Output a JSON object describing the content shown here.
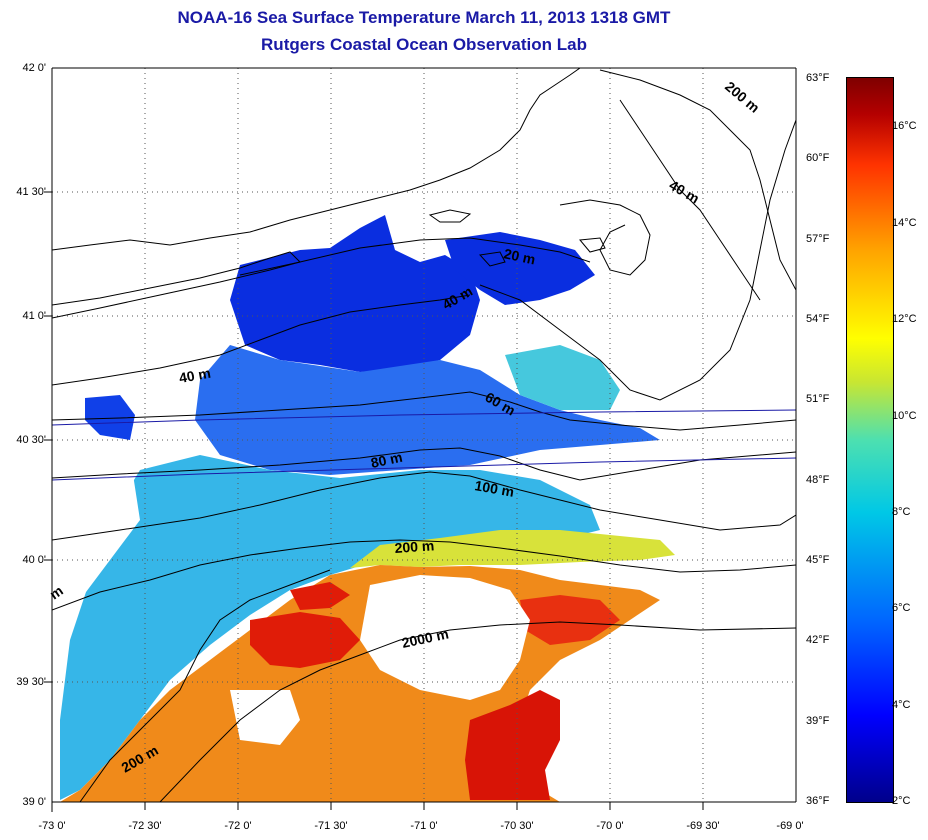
{
  "title_line1": "NOAA-16 Sea Surface Temperature March 11, 2013 1318 GMT",
  "title_line2": "Rutgers Coastal Ocean Observation Lab",
  "latitude_labels": [
    "42 0'",
    "41 30'",
    "41 0'",
    "40 30'",
    "40 0'",
    "39 30'",
    "39 0'"
  ],
  "longitude_labels": [
    "-73 0'",
    "-72 30'",
    "-72 0'",
    "-71 30'",
    "-71 0'",
    "-70 30'",
    "-70 0'",
    "-69 30'",
    "-69 0'"
  ],
  "fahrenheit_labels": [
    "63°F",
    "60°F",
    "57°F",
    "54°F",
    "51°F",
    "48°F",
    "45°F",
    "42°F",
    "39°F",
    "36°F"
  ],
  "celsius_labels": [
    "16°C",
    "14°C",
    "12°C",
    "10°C",
    "8°C",
    "6°C",
    "4°C",
    "2°C"
  ],
  "contour_labels": {
    "c20": "20 m",
    "c40a": "40 m",
    "c40b": "40 m",
    "c40c": "40 m",
    "c60": "60 m",
    "c80": "80 m",
    "c100": "100 m",
    "c200a": "200 m",
    "c200b": "200 m",
    "c200c": "200 m",
    "c2000": "2000 m",
    "cm": "m"
  },
  "colors": {
    "title": "#1a1aa6",
    "cold": "#0022dd",
    "cool": "#3399ee",
    "mild": "#33ccdd",
    "warm": "#ee7711",
    "hot": "#dd1100"
  }
}
